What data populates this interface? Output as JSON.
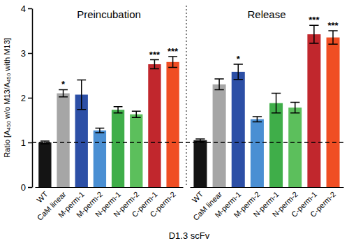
{
  "chart_data": {
    "type": "bar",
    "y_label": "Ratio [A₄₅₀ w/o M13/A₄₅₀ with M13]",
    "x_label": "D1.3 scFv",
    "categories": [
      "WT",
      "CaM linear",
      "M-perm-1",
      "M-perm-2",
      "N-perm-1",
      "N-perm-2",
      "C-perm-1",
      "C-perm-2"
    ],
    "colors": [
      "#141414",
      "#a6a6a6",
      "#2c4fa6",
      "#4a8fd3",
      "#3fae49",
      "#5cbf5c",
      "#c1272d",
      "#f04e23"
    ],
    "ylim": [
      0,
      4
    ],
    "yticks": [
      0,
      1,
      2,
      3,
      4
    ],
    "hline": 1,
    "panels": [
      {
        "title": "Preincubation",
        "values": [
          1.0,
          2.1,
          2.07,
          1.27,
          1.73,
          1.63,
          2.75,
          2.8
        ],
        "errors": [
          0.03,
          0.08,
          0.33,
          0.05,
          0.07,
          0.07,
          0.1,
          0.12
        ],
        "annotations": [
          null,
          "*",
          null,
          null,
          null,
          null,
          "***",
          "***"
        ]
      },
      {
        "title": "Release",
        "values": [
          1.05,
          2.3,
          2.58,
          1.52,
          1.88,
          1.78,
          3.42,
          3.35
        ],
        "errors": [
          0.03,
          0.12,
          0.17,
          0.06,
          0.22,
          0.12,
          0.2,
          0.15
        ],
        "annotations": [
          null,
          null,
          "*",
          null,
          null,
          null,
          "***",
          "***"
        ]
      }
    ]
  }
}
